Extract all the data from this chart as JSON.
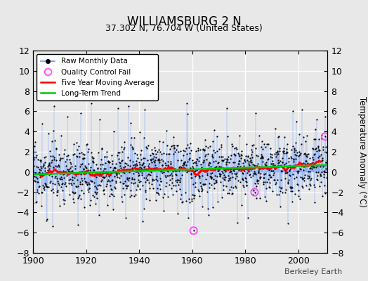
{
  "title": "WILLIAMSBURG 2 N",
  "subtitle": "37.302 N, 76.704 W (United States)",
  "ylabel": "Temperature Anomaly (°C)",
  "credit": "Berkeley Earth",
  "year_start": 1900,
  "year_end": 2011,
  "ylim": [
    -8,
    12
  ],
  "yticks": [
    -8,
    -6,
    -4,
    -2,
    0,
    2,
    4,
    6,
    8,
    10,
    12
  ],
  "xticks": [
    1900,
    1920,
    1940,
    1960,
    1980,
    2000
  ],
  "stem_color": "#6699ff",
  "marker_color": "#000000",
  "moving_avg_color": "#ff0000",
  "trend_color": "#00cc00",
  "qc_fail_color": "#ff44ff",
  "background_color": "#e8e8e8",
  "plot_bg_color": "#e8e8e8",
  "seed": 17
}
